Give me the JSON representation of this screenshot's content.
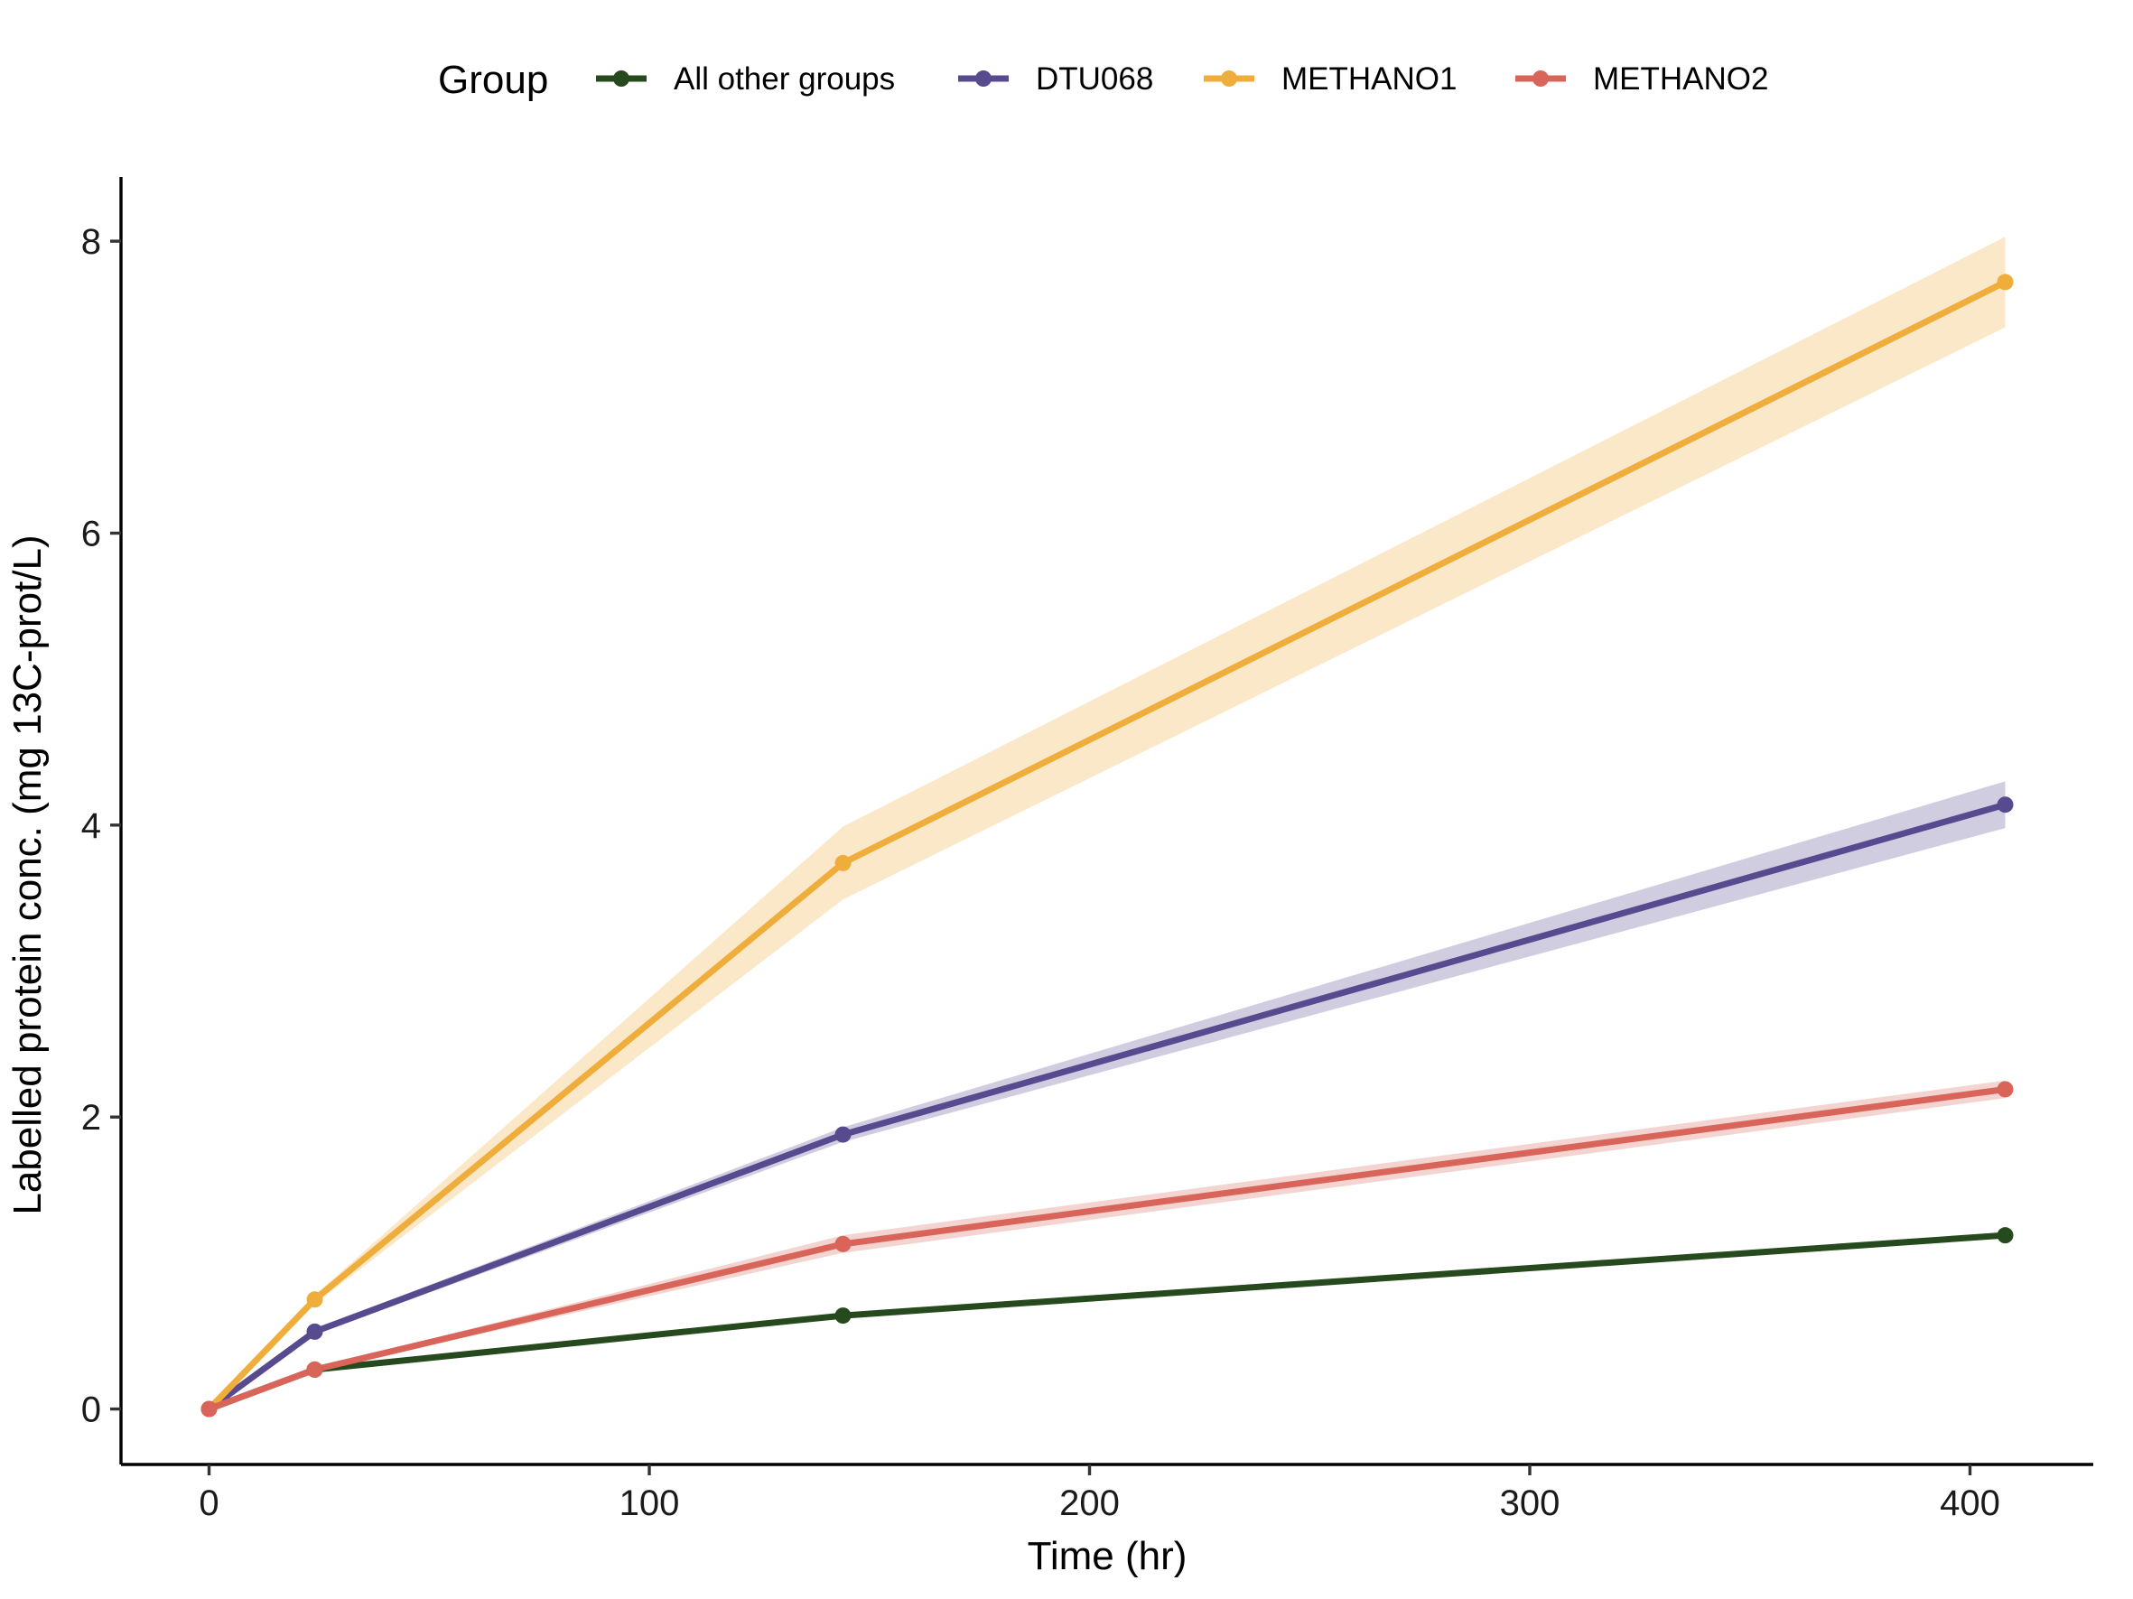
{
  "chart_data": {
    "type": "line",
    "title": "",
    "xlabel": "Time (hr)",
    "ylabel": "Labelled protein conc. (mg 13C-prot/L)",
    "xlim": [
      -20,
      428
    ],
    "ylim": [
      -0.38,
      8.44
    ],
    "xticks": [
      0,
      100,
      200,
      300,
      400
    ],
    "yticks": [
      0,
      2,
      4,
      6,
      8
    ],
    "grid": false,
    "legend": {
      "title": "Group",
      "position": "top",
      "orientation": "horizontal"
    },
    "x": [
      0,
      24,
      144,
      408
    ],
    "series": [
      {
        "name": "All other groups",
        "color": "#264a1e",
        "values": [
          0,
          0.27,
          0.64,
          1.19
        ],
        "lower": [
          0,
          0.26,
          0.62,
          1.17
        ],
        "upper": [
          0,
          0.28,
          0.66,
          1.21
        ]
      },
      {
        "name": "DTU068",
        "color": "#574a8f",
        "values": [
          0,
          0.53,
          1.88,
          4.14
        ],
        "lower": [
          0,
          0.51,
          1.83,
          3.98
        ],
        "upper": [
          0,
          0.55,
          1.93,
          4.3
        ]
      },
      {
        "name": "METHANO1",
        "color": "#efae3c",
        "values": [
          0,
          0.75,
          3.74,
          7.72
        ],
        "lower": [
          0,
          0.72,
          3.49,
          7.41
        ],
        "upper": [
          0,
          0.78,
          3.99,
          8.03
        ]
      },
      {
        "name": "METHANO2",
        "color": "#d9655a",
        "values": [
          0,
          0.27,
          1.13,
          2.19
        ],
        "lower": [
          0,
          0.26,
          1.07,
          2.13
        ],
        "upper": [
          0,
          0.28,
          1.19,
          2.25
        ]
      }
    ]
  }
}
